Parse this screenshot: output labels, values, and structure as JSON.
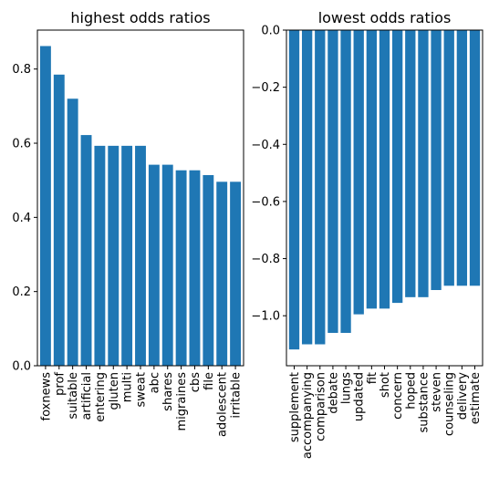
{
  "colors": {
    "bar": "#1f77b4",
    "axis": "#000000",
    "background": "#ffffff"
  },
  "chart_data": [
    {
      "type": "bar",
      "title": "highest odds ratios",
      "xlabel": "",
      "ylabel": "",
      "ylim": [
        0,
        0.905
      ],
      "yticks": [
        0.0,
        0.2,
        0.4,
        0.6,
        0.8
      ],
      "ytick_labels": [
        "0.0",
        "0.2",
        "0.4",
        "0.6",
        "0.8"
      ],
      "grid": false,
      "categories": [
        "foxnews",
        "prof",
        "suitable",
        "artificial",
        "entering",
        "gluten",
        "multi",
        "sweat",
        "abc",
        "shares",
        "migraines",
        "cbs",
        "file",
        "adolescent",
        "irritable"
      ],
      "values": [
        0.862,
        0.785,
        0.72,
        0.622,
        0.593,
        0.593,
        0.593,
        0.593,
        0.542,
        0.542,
        0.527,
        0.527,
        0.514,
        0.496,
        0.496
      ]
    },
    {
      "type": "bar",
      "title": "lowest odds ratios",
      "xlabel": "",
      "ylabel": "",
      "ylim": [
        -1.175,
        0.0
      ],
      "yticks": [
        0.0,
        -0.2,
        -0.4,
        -0.6,
        -0.8,
        -1.0
      ],
      "ytick_labels": [
        "0.0",
        "−0.2",
        "−0.4",
        "−0.6",
        "−0.8",
        "−1.0"
      ],
      "grid": false,
      "categories": [
        "supplement",
        "accompanying",
        "comparison",
        "debate",
        "lungs",
        "updated",
        "fit",
        "shot",
        "concern",
        "hoped",
        "substance",
        "steven",
        "counseling",
        "delivery",
        "estimate"
      ],
      "values": [
        -1.118,
        -1.1,
        -1.1,
        -1.06,
        -1.06,
        -0.995,
        -0.975,
        -0.975,
        -0.955,
        -0.935,
        -0.935,
        -0.91,
        -0.895,
        -0.895,
        -0.895
      ]
    }
  ]
}
